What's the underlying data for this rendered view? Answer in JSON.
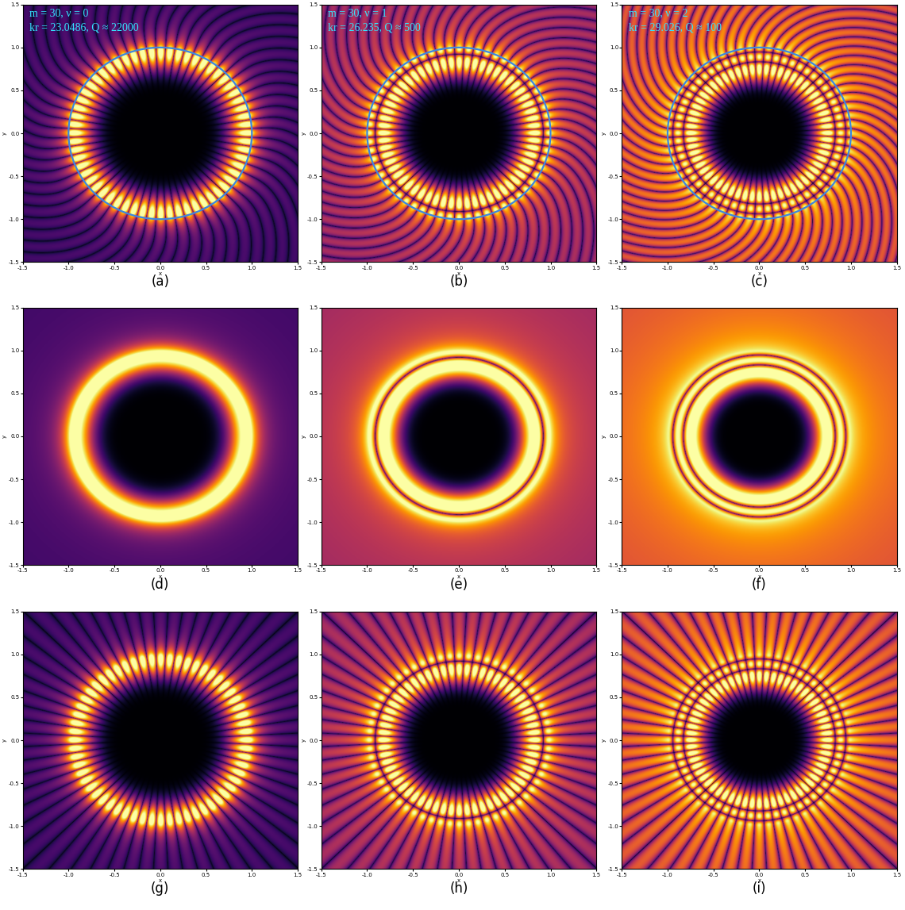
{
  "chart_data": [
    {
      "type": "heatmap",
      "caption": "(a)",
      "x_label": "x",
      "y_label": "y",
      "xlim": [
        -1.5,
        1.5
      ],
      "ylim": [
        -1.5,
        1.5
      ],
      "xticks": [
        -1.5,
        -1.0,
        -0.5,
        0.0,
        0.5,
        1.0,
        1.5
      ],
      "yticks": [
        -1.5,
        -1.0,
        -0.5,
        0.0,
        0.5,
        1.0,
        1.5
      ],
      "mode": {
        "m": 30,
        "kr": 23.0486
      },
      "boundary_radius": 1,
      "annotations": [
        "m = 30, ν = 0",
        "kr = 23.0486, Q ≈ 22000"
      ]
    },
    {
      "type": "heatmap",
      "caption": "(b)",
      "x_label": "x",
      "y_label": "y",
      "xlim": [
        -1.5,
        1.5
      ],
      "ylim": [
        -1.5,
        1.5
      ],
      "xticks": [
        -1.5,
        -1.0,
        -0.5,
        0.0,
        0.5,
        1.0,
        1.5
      ],
      "yticks": [
        -1.5,
        -1.0,
        -0.5,
        0.0,
        0.5,
        1.0,
        1.5
      ],
      "mode": {
        "m": 30,
        "kr": 26.235
      },
      "boundary_radius": 1,
      "annotations": [
        "m = 30, ν = 1",
        "kr = 26.235, Q ≈ 500"
      ]
    },
    {
      "type": "heatmap",
      "caption": "(c)",
      "x_label": "x",
      "y_label": "y",
      "xlim": [
        -1.5,
        1.5
      ],
      "ylim": [
        -1.5,
        1.5
      ],
      "xticks": [
        -1.5,
        -1.0,
        -0.5,
        0.0,
        0.5,
        1.0,
        1.5
      ],
      "yticks": [
        -1.5,
        -1.0,
        -0.5,
        0.0,
        0.5,
        1.0,
        1.5
      ],
      "mode": {
        "m": 30,
        "kr": 29.026
      },
      "boundary_radius": 1,
      "annotations": [
        "m = 30, ν = 2",
        "kr = 29.026, Q ≈ 100"
      ]
    },
    {
      "type": "heatmap",
      "caption": "(d)",
      "x_label": "x",
      "y_label": "y",
      "xlim": [
        -1.5,
        1.5
      ],
      "ylim": [
        -1.5,
        1.5
      ],
      "xticks": [
        -1.5,
        -1.0,
        -0.5,
        0.0,
        0.5,
        1.0,
        1.5
      ],
      "yticks": [
        -1.5,
        -1.0,
        -0.5,
        0.0,
        0.5,
        1.0,
        1.5
      ],
      "mode": {
        "m": 30,
        "kr": 23.0486
      }
    },
    {
      "type": "heatmap",
      "caption": "(e)",
      "x_label": "x",
      "y_label": "y",
      "xlim": [
        -1.5,
        1.5
      ],
      "ylim": [
        -1.5,
        1.5
      ],
      "xticks": [
        -1.5,
        -1.0,
        -0.5,
        0.0,
        0.5,
        1.0,
        1.5
      ],
      "yticks": [
        -1.5,
        -1.0,
        -0.5,
        0.0,
        0.5,
        1.0,
        1.5
      ],
      "mode": {
        "m": 30,
        "kr": 26.235
      }
    },
    {
      "type": "heatmap",
      "caption": "(f)",
      "x_label": "x",
      "y_label": "y",
      "xlim": [
        -1.5,
        1.5
      ],
      "ylim": [
        -1.5,
        1.5
      ],
      "xticks": [
        -1.5,
        -1.0,
        -0.5,
        0.0,
        0.5,
        1.0,
        1.5
      ],
      "yticks": [
        -1.5,
        -1.0,
        -0.5,
        0.0,
        0.5,
        1.0,
        1.5
      ],
      "mode": {
        "m": 30,
        "kr": 29.026
      }
    },
    {
      "type": "heatmap",
      "caption": "(g)",
      "x_label": "x",
      "y_label": "y",
      "xlim": [
        -1.5,
        1.5
      ],
      "ylim": [
        -1.5,
        1.5
      ],
      "xticks": [
        -1.5,
        -1.0,
        -0.5,
        0.0,
        0.5,
        1.0,
        1.5
      ],
      "yticks": [
        -1.5,
        -1.0,
        -0.5,
        0.0,
        0.5,
        1.0,
        1.5
      ],
      "mode": {
        "m": 30,
        "kr": 23.0486
      }
    },
    {
      "type": "heatmap",
      "caption": "(h)",
      "x_label": "x",
      "y_label": "y",
      "xlim": [
        -1.5,
        1.5
      ],
      "ylim": [
        -1.5,
        1.5
      ],
      "xticks": [
        -1.5,
        -1.0,
        -0.5,
        0.0,
        0.5,
        1.0,
        1.5
      ],
      "yticks": [
        -1.5,
        -1.0,
        -0.5,
        0.0,
        0.5,
        1.0,
        1.5
      ],
      "mode": {
        "m": 30,
        "kr": 26.235
      }
    },
    {
      "type": "heatmap",
      "caption": "(i)",
      "x_label": "x",
      "y_label": "y",
      "xlim": [
        -1.5,
        1.5
      ],
      "ylim": [
        -1.5,
        1.5
      ],
      "xticks": [
        -1.5,
        -1.0,
        -0.5,
        0.0,
        0.5,
        1.0,
        1.5
      ],
      "yticks": [
        -1.5,
        -1.0,
        -0.5,
        0.0,
        0.5,
        1.0,
        1.5
      ],
      "mode": {
        "m": 30,
        "kr": 29.026
      }
    }
  ]
}
